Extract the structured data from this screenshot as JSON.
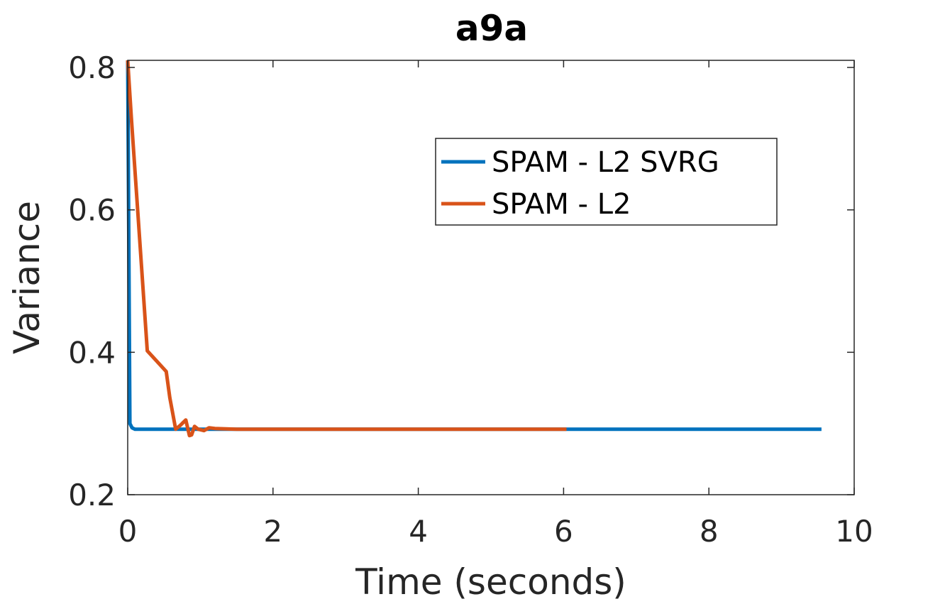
{
  "chart_data": {
    "type": "line",
    "title": "a9a",
    "xlabel": "Time (seconds)",
    "ylabel": "Variance",
    "xlim": [
      0,
      10
    ],
    "ylim": [
      0.2,
      0.81
    ],
    "xticks": [
      "0",
      "2",
      "4",
      "6",
      "8",
      "10"
    ],
    "yticks": [
      "0.2",
      "0.4",
      "0.6",
      "0.8"
    ],
    "grid": false,
    "legend_position": "top-right",
    "series": [
      {
        "name": "SPAM - L2 SVRG",
        "color": "#0072BD",
        "x": [
          0,
          0.03,
          0.06,
          0.1,
          0.2,
          0.5,
          1.0,
          2.0,
          4.0,
          6.0,
          8.0,
          9.55
        ],
        "y": [
          0.81,
          0.3,
          0.294,
          0.292,
          0.292,
          0.292,
          0.292,
          0.292,
          0.292,
          0.292,
          0.292,
          0.292
        ]
      },
      {
        "name": "SPAM - L2",
        "color": "#D95319",
        "x": [
          0,
          0.05,
          0.27,
          0.53,
          0.58,
          0.66,
          0.72,
          0.8,
          0.85,
          0.88,
          0.92,
          0.97,
          1.05,
          1.12,
          1.2,
          1.5,
          2.0,
          3.0,
          4.0,
          5.0,
          6.04
        ],
        "y": [
          0.81,
          0.73,
          0.402,
          0.373,
          0.336,
          0.292,
          0.297,
          0.305,
          0.283,
          0.284,
          0.296,
          0.292,
          0.29,
          0.294,
          0.293,
          0.292,
          0.292,
          0.292,
          0.292,
          0.292,
          0.292
        ]
      }
    ]
  }
}
